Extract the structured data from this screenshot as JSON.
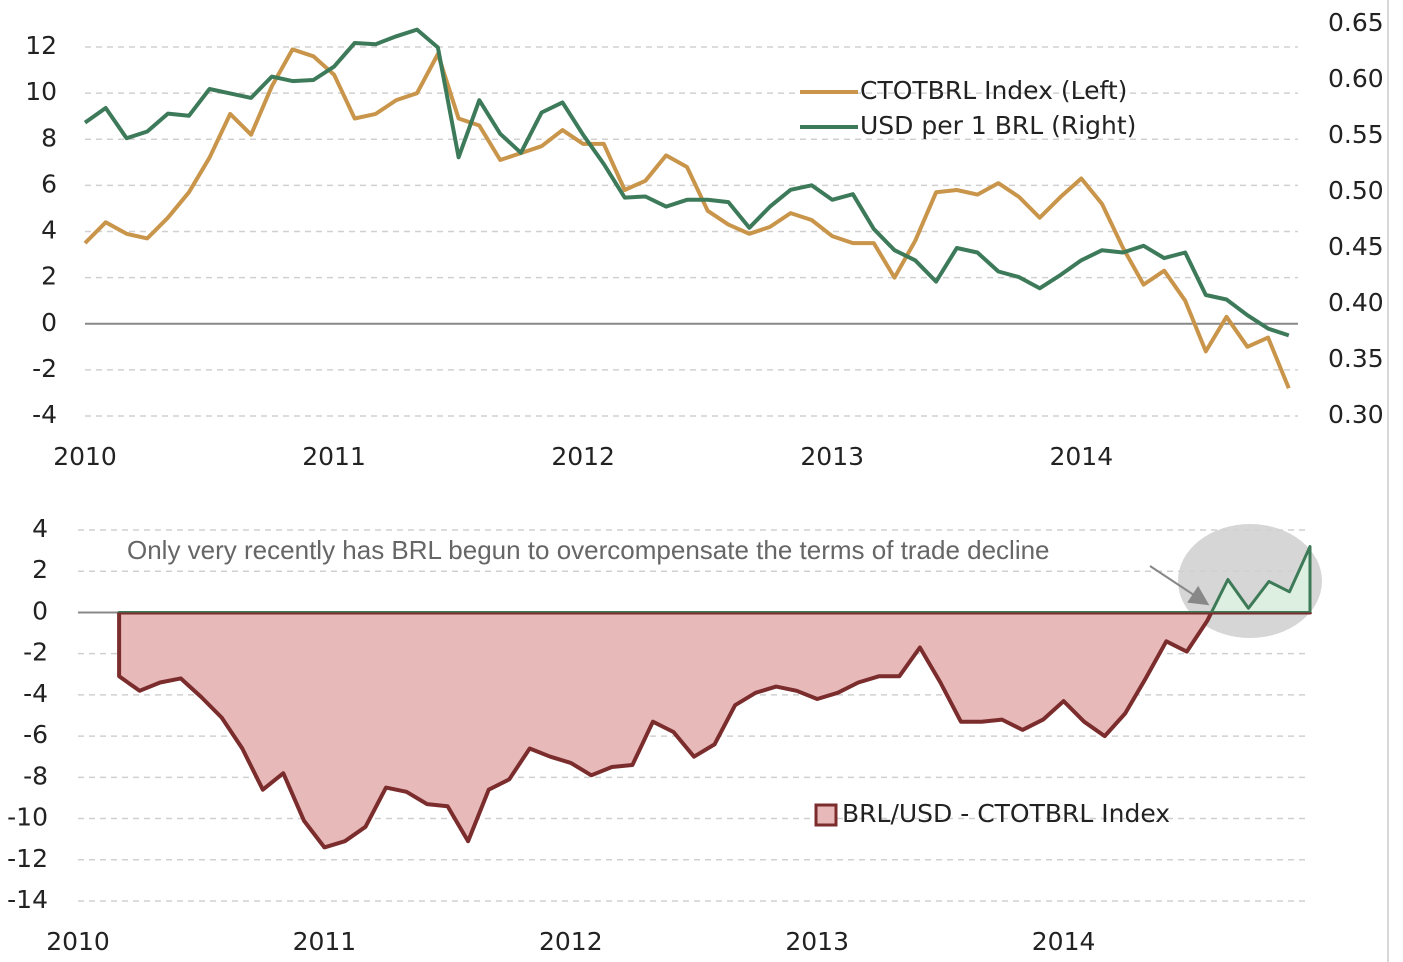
{
  "chart_data": [
    {
      "type": "line",
      "x": [
        2010,
        2010.083,
        2010.167,
        2010.25,
        2010.333,
        2010.417,
        2010.5,
        2010.583,
        2010.667,
        2010.75,
        2010.833,
        2010.917,
        2011,
        2011.083,
        2011.167,
        2011.25,
        2011.333,
        2011.417,
        2011.5,
        2011.583,
        2011.667,
        2011.75,
        2011.833,
        2011.917,
        2012,
        2012.083,
        2012.167,
        2012.25,
        2012.333,
        2012.417,
        2012.5,
        2012.583,
        2012.667,
        2012.75,
        2012.833,
        2012.917,
        2013,
        2013.083,
        2013.167,
        2013.25,
        2013.333,
        2013.417,
        2013.5,
        2013.583,
        2013.667,
        2013.75,
        2013.833,
        2013.917,
        2014,
        2014.083,
        2014.167,
        2014.25,
        2014.333,
        2014.417,
        2014.5,
        2014.583,
        2014.667,
        2014.75,
        2014.833
      ],
      "series": [
        {
          "name": "CTOTBRL Index (Left)",
          "color": "#c9954a",
          "values": [
            3.5,
            4.4,
            3.9,
            3.7,
            4.6,
            5.7,
            7.2,
            9.1,
            8.2,
            10.3,
            11.9,
            11.6,
            10.8,
            8.9,
            9.1,
            9.7,
            10.0,
            11.7,
            8.9,
            8.6,
            7.1,
            7.4,
            7.7,
            8.4,
            7.8,
            7.8,
            5.8,
            6.2,
            7.3,
            6.8,
            4.9,
            4.3,
            3.9,
            4.2,
            4.8,
            4.5,
            3.8,
            3.5,
            3.5,
            2.0,
            3.6,
            5.7,
            5.8,
            5.6,
            6.1,
            5.5,
            4.6,
            5.5,
            6.3,
            5.2,
            3.3,
            1.7,
            2.3,
            1.0,
            -1.2,
            0.3,
            -1.0,
            -0.6,
            -2.8
          ]
        },
        {
          "name": "USD per 1 BRL (Right)",
          "color": "#3d7a5a",
          "axis": "y2",
          "values": [
            0.562,
            0.575,
            0.548,
            0.554,
            0.57,
            0.568,
            0.592,
            0.588,
            0.584,
            0.603,
            0.599,
            0.6,
            0.612,
            0.633,
            0.632,
            0.639,
            0.645,
            0.629,
            0.531,
            0.582,
            0.552,
            0.535,
            0.571,
            0.58,
            0.551,
            0.525,
            0.495,
            0.496,
            0.487,
            0.493,
            0.493,
            0.491,
            0.468,
            0.487,
            0.502,
            0.506,
            0.493,
            0.498,
            0.467,
            0.448,
            0.439,
            0.42,
            0.45,
            0.446,
            0.429,
            0.424,
            0.414,
            0.426,
            0.439,
            0.448,
            0.446,
            0.452,
            0.441,
            0.446,
            0.408,
            0.404,
            0.39,
            0.378,
            0.372
          ]
        }
      ],
      "xlim": [
        2010,
        2014.87
      ],
      "xticks": [
        2010,
        2011,
        2012,
        2013,
        2014
      ],
      "ylim": [
        -4,
        13
      ],
      "yticks": [
        -4,
        -2,
        0,
        2,
        4,
        6,
        8,
        10,
        12
      ],
      "y2lim": [
        0.3,
        0.65
      ],
      "y2ticks": [
        {
          "value": 0.3,
          "label": "0.30"
        },
        {
          "value": 0.35,
          "label": "0.35"
        },
        {
          "value": 0.4,
          "label": "0.40"
        },
        {
          "value": 0.45,
          "label": "0.45"
        },
        {
          "value": 0.5,
          "label": "0.50"
        },
        {
          "value": 0.55,
          "label": "0.55"
        },
        {
          "value": 0.6,
          "label": "0.60"
        },
        {
          "value": 0.65,
          "label": "0.65"
        }
      ],
      "grid": true
    },
    {
      "type": "area",
      "x": [
        2010.167,
        2010.25,
        2010.333,
        2010.417,
        2010.5,
        2010.583,
        2010.667,
        2010.75,
        2010.833,
        2010.917,
        2011,
        2011.083,
        2011.167,
        2011.25,
        2011.333,
        2011.417,
        2011.5,
        2011.583,
        2011.667,
        2011.75,
        2011.833,
        2011.917,
        2012,
        2012.083,
        2012.167,
        2012.25,
        2012.333,
        2012.417,
        2012.5,
        2012.583,
        2012.667,
        2012.75,
        2012.833,
        2012.917,
        2013,
        2013.083,
        2013.167,
        2013.25,
        2013.333,
        2013.417,
        2013.5,
        2013.583,
        2013.667,
        2013.75,
        2013.833,
        2013.917,
        2014,
        2014.083,
        2014.167,
        2014.25,
        2014.333,
        2014.417,
        2014.5,
        2014.583,
        2014.667,
        2014.75,
        2014.833,
        2014.917,
        2015
      ],
      "series": [
        {
          "name": "BRL/USD - CTOTBRL Index",
          "color": "#7b2c2c",
          "fill": "#e8b9b9",
          "positive_color": "#3d7a57",
          "positive_fill": "#dcefe0",
          "values": [
            -3.1,
            -3.8,
            -3.4,
            -3.2,
            -4.1,
            -5.1,
            -6.6,
            -8.6,
            -7.8,
            -10.1,
            -11.4,
            -11.1,
            -10.4,
            -8.5,
            -8.7,
            -9.3,
            -9.4,
            -11.1,
            -8.6,
            -8.1,
            -6.6,
            -7.0,
            -7.3,
            -7.9,
            -7.5,
            -7.4,
            -5.3,
            -5.8,
            -7.0,
            -6.4,
            -4.5,
            -3.9,
            -3.6,
            -3.8,
            -4.2,
            -3.9,
            -3.4,
            -3.1,
            -3.1,
            -1.7,
            -3.4,
            -5.3,
            -5.3,
            -5.2,
            -5.7,
            -5.2,
            -4.3,
            -5.3,
            -6.0,
            -4.9,
            -3.2,
            -1.4,
            -1.9,
            -0.4,
            1.6,
            0.2,
            1.5,
            1.0,
            3.2
          ]
        }
      ],
      "annotation": "Only very recently has BRL begun to overcompensate the terms of trade decline",
      "xlim": [
        2010,
        2015
      ],
      "xticks": [
        2010,
        2011,
        2012,
        2013,
        2014
      ],
      "ylim": [
        -14,
        4
      ],
      "yticks": [
        -14,
        -12,
        -10,
        -8,
        -6,
        -4,
        -2,
        0,
        2,
        4
      ],
      "grid": true
    }
  ]
}
